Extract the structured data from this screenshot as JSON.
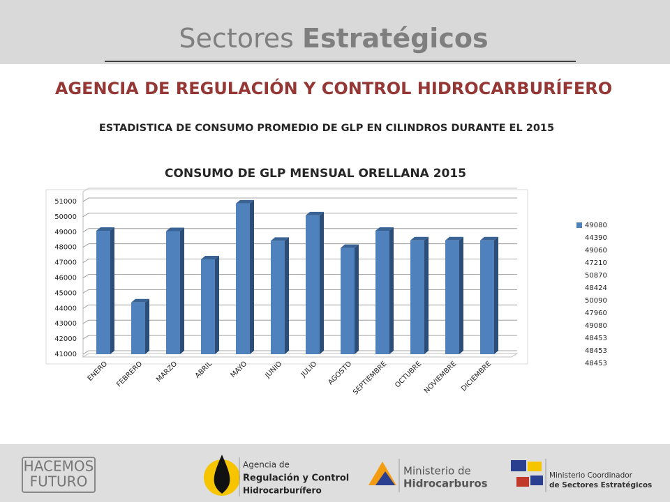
{
  "header": {
    "title_regular": "Sectores",
    "title_bold": "Estratégicos"
  },
  "agency_title": "AGENCIA DE REGULACIÓN Y CONTROL HIDROCARBURÍFERO",
  "subtitle": "ESTADISTICA DE CONSUMO PROMEDIO DE GLP EN CILINDROS DURANTE EL 2015",
  "chart_data": {
    "type": "bar3d",
    "title": "CONSUMO DE GLP MENSUAL ORELLANA 2015",
    "categories": [
      "ENERO",
      "FEBRERO",
      "MARZO",
      "ABRIL",
      "MAYO",
      "JUNIO",
      "JULIO",
      "AGOSTO",
      "SEPTIEMBRE",
      "OCTUBRE",
      "NOVIEMBRE",
      "DICIEMBRE"
    ],
    "values": [
      49080,
      44390,
      49060,
      47210,
      50870,
      48424,
      50090,
      47960,
      49080,
      48453,
      48453,
      48453
    ],
    "color": "#4f81bd",
    "ylim": [
      41000,
      51000
    ],
    "yticks": [
      41000,
      42000,
      43000,
      44000,
      45000,
      46000,
      47000,
      48000,
      49000,
      50000,
      51000
    ],
    "grid": true
  },
  "footer": {
    "logo1": [
      "HACEMOS",
      "FUTURO"
    ],
    "logo2": [
      "Agencia de",
      "Regulación y Control",
      "Hidrocarburífero"
    ],
    "logo3": [
      "Ministerio de",
      "Hidrocarburos"
    ],
    "logo4": [
      "Ministerio Coordinador",
      "de Sectores Estratégicos"
    ]
  }
}
